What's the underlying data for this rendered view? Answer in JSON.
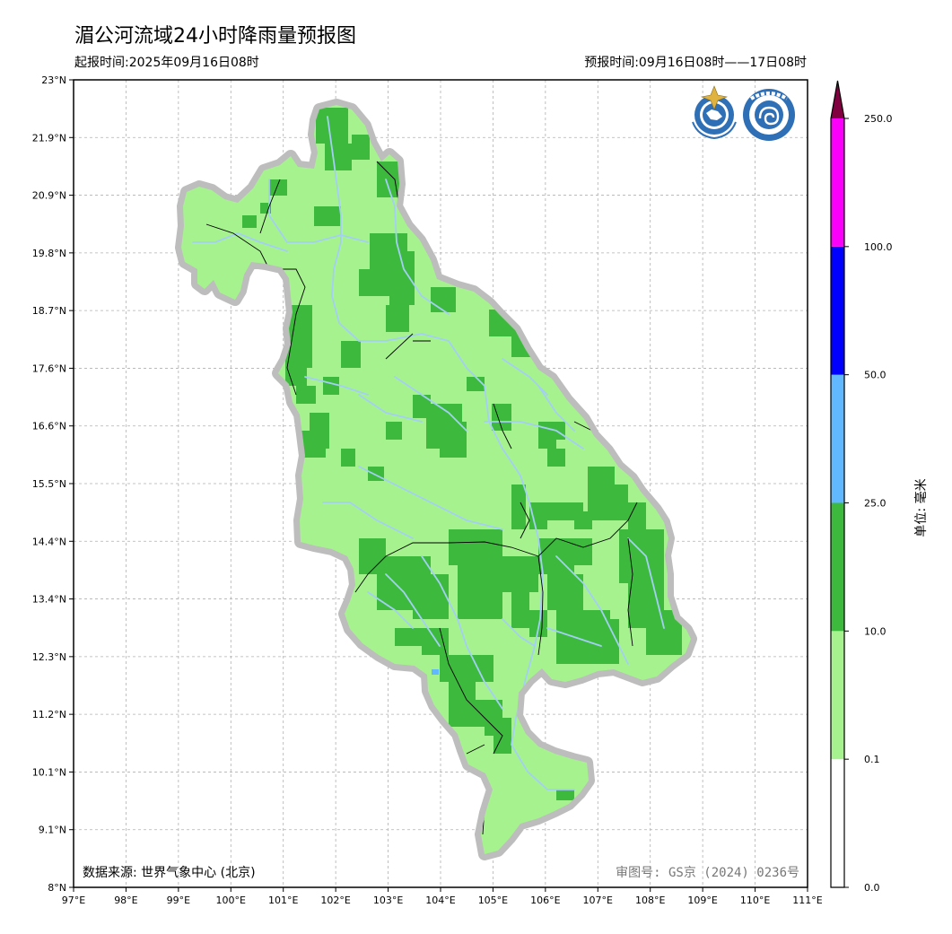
{
  "title": "湄公河流域24小时降雨量预报图",
  "issue_time": "起报时间:2025年09月16日08时",
  "forecast_time": "预报时间:09月16日08时——17日08时",
  "data_source": "数据来源: 世界气象中心 (北京)",
  "review_number": "审图号: GS京 (2024) 0236号",
  "unit_label": "单位: 毫米",
  "logos": [
    "wmo-logo",
    "cma-logo"
  ],
  "axes": {
    "x_ticks": [
      "97°E",
      "98°E",
      "99°E",
      "100°E",
      "101°E",
      "102°E",
      "103°E",
      "104°E",
      "105°E",
      "106°E",
      "107°E",
      "108°E",
      "109°E",
      "110°E",
      "111°E"
    ],
    "y_ticks": [
      "23°N",
      "21.9°N",
      "20.9°N",
      "19.8°N",
      "18.7°N",
      "17.6°N",
      "16.6°N",
      "15.5°N",
      "14.4°N",
      "13.4°N",
      "12.3°N",
      "11.2°N",
      "10.1°N",
      "9.1°N",
      "8°N"
    ],
    "lon_range": [
      97,
      111
    ],
    "lat_range": [
      8,
      23
    ]
  },
  "colorbar": {
    "levels": [
      "0.0",
      "0.1",
      "10.0",
      "25.0",
      "50.0",
      "100.0",
      "250.0"
    ],
    "colors": [
      "#ffffff",
      "#a6f28f",
      "#3dba3d",
      "#61b8ff",
      "#0000ff",
      "#fa00fa",
      "#800040"
    ]
  },
  "colors": {
    "light_green": "#a6f28f",
    "dark_green": "#3dba3d",
    "light_blue": "#61b8ff",
    "river": "#a4cff5",
    "border_halo": "#bdbdbd",
    "grid": "#b0b0b0"
  }
}
